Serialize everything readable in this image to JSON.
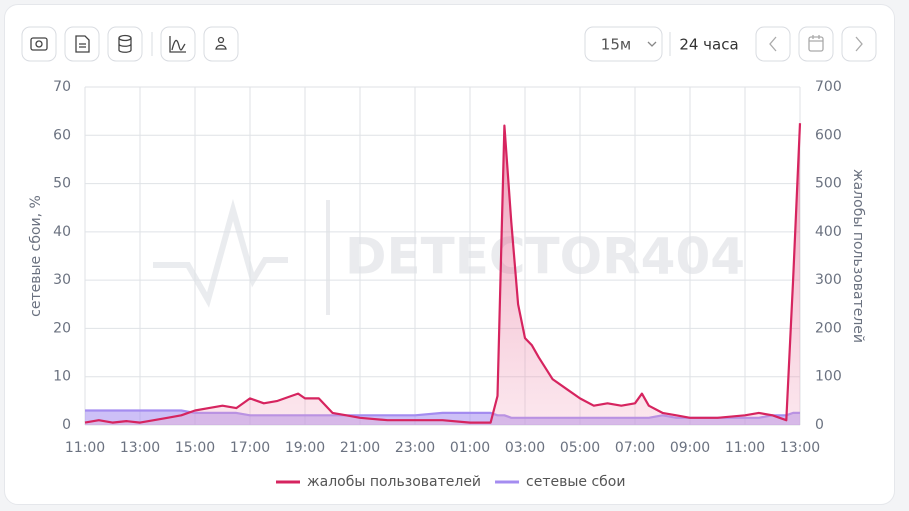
{
  "toolbar": {
    "interval": "15м",
    "range": "24 часа"
  },
  "watermark": "DETECTOR404",
  "chart_data": {
    "type": "line",
    "ylabel": "сетевые сбои, %",
    "y2label": "жалобы пользователей",
    "x": [
      11,
      11.5,
      12,
      12.5,
      13,
      13.5,
      14,
      14.5,
      15,
      15.5,
      16,
      16.5,
      17,
      17.5,
      18,
      18.5,
      18.75,
      19,
      19.5,
      20,
      20.5,
      21,
      22,
      23,
      24,
      25,
      25.75,
      26,
      26.25,
      26.5,
      26.75,
      27,
      27.25,
      27.5,
      28,
      28.5,
      29,
      29.5,
      30,
      30.5,
      31,
      31.25,
      31.5,
      32,
      32.5,
      33,
      34,
      35,
      35.5,
      36,
      36.5,
      36.75,
      37
    ],
    "xlim": [
      11,
      37
    ],
    "xticks": [
      {
        "value": 11,
        "label": "11:00"
      },
      {
        "value": 13,
        "label": "13:00"
      },
      {
        "value": 15,
        "label": "15:00"
      },
      {
        "value": 17,
        "label": "17:00"
      },
      {
        "value": 19,
        "label": "19:00"
      },
      {
        "value": 21,
        "label": "21:00"
      },
      {
        "value": 23,
        "label": "23:00"
      },
      {
        "value": 25,
        "label": "01:00"
      },
      {
        "value": 27,
        "label": "03:00"
      },
      {
        "value": 29,
        "label": "05:00"
      },
      {
        "value": 31,
        "label": "07:00"
      },
      {
        "value": 33,
        "label": "09:00"
      },
      {
        "value": 35,
        "label": "11:00"
      },
      {
        "value": 37,
        "label": "13:00"
      }
    ],
    "ylim": [
      0,
      70
    ],
    "yticks": [
      0,
      10,
      20,
      30,
      40,
      50,
      60,
      70
    ],
    "y2lim": [
      0,
      700
    ],
    "y2ticks": [
      0,
      100,
      200,
      300,
      400,
      500,
      600,
      700
    ],
    "grid": true,
    "legend": "bottom",
    "series": [
      {
        "name": "жалобы пользователей",
        "color": "#d6245f",
        "axis": "y2",
        "values": [
          5,
          10,
          5,
          8,
          5,
          10,
          15,
          20,
          30,
          35,
          40,
          35,
          55,
          45,
          50,
          60,
          65,
          55,
          55,
          25,
          20,
          15,
          10,
          10,
          10,
          5,
          5,
          60,
          620,
          420,
          250,
          180,
          165,
          140,
          95,
          75,
          55,
          40,
          45,
          40,
          45,
          65,
          40,
          25,
          20,
          15,
          15,
          20,
          25,
          20,
          10,
          300,
          625
        ]
      },
      {
        "name": "сетевые сбои",
        "color": "#a48cf0",
        "values": [
          3,
          3,
          3,
          3,
          3,
          3,
          3,
          3,
          2.5,
          2.5,
          2.5,
          2.5,
          2,
          2,
          2,
          2,
          2,
          2,
          2,
          2,
          2,
          2,
          2,
          2,
          2.5,
          2.5,
          2.5,
          2,
          2,
          1.5,
          1.5,
          1.5,
          1.5,
          1.5,
          1.5,
          1.5,
          1.5,
          1.5,
          1.5,
          1.5,
          1.5,
          1.5,
          1.5,
          2,
          1.5,
          1.5,
          1.5,
          1.5,
          1.5,
          2,
          2,
          2.5,
          2.5
        ]
      }
    ]
  }
}
